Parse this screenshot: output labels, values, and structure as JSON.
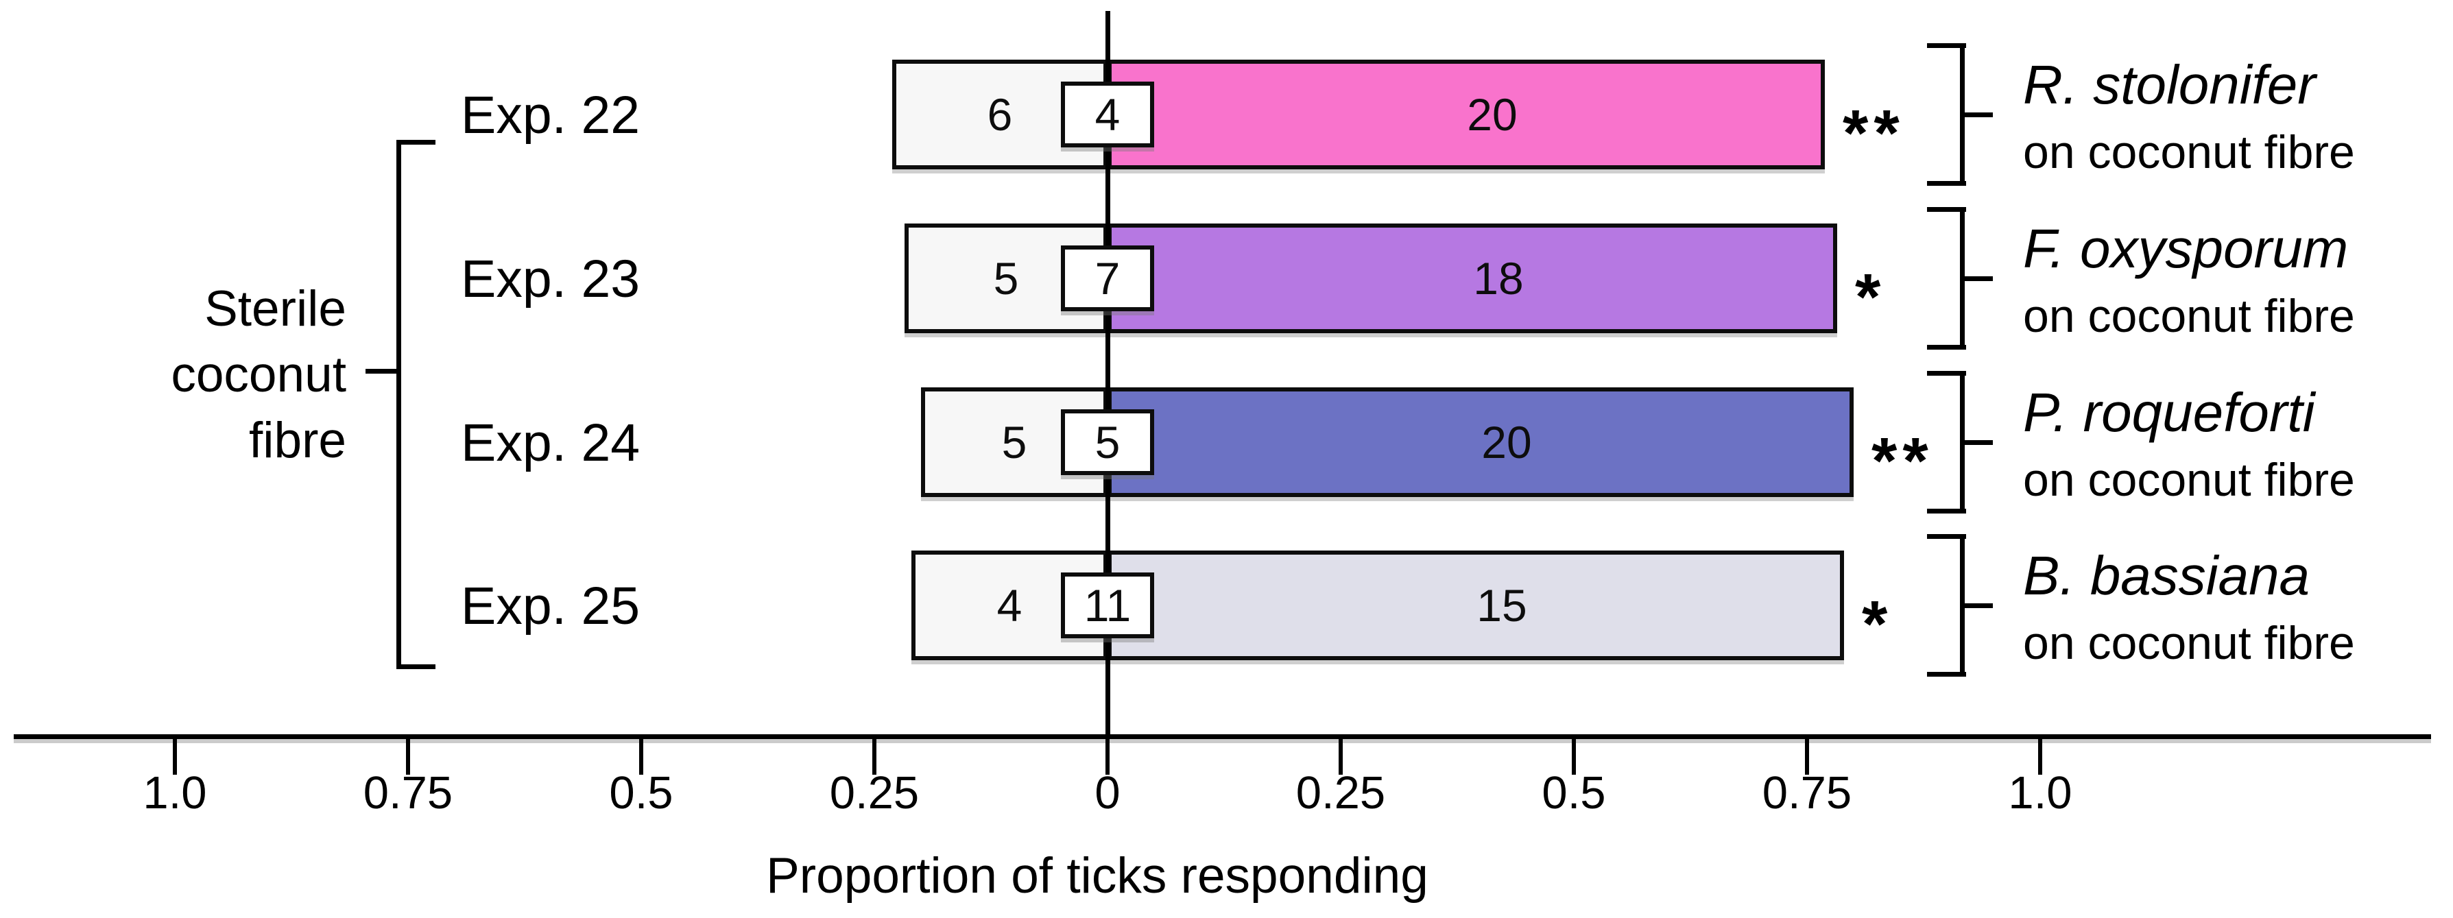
{
  "chart_data": {
    "type": "bar",
    "variant": "diverging-horizontal-choice-test",
    "title": "",
    "xlabel": "Proportion of ticks responding",
    "group_label_lines": [
      "Sterile",
      "coconut",
      "fibre"
    ],
    "axis": {
      "ticks": [
        {
          "label": "1.0",
          "value": -1.0
        },
        {
          "label": "0.75",
          "value": -0.75
        },
        {
          "label": "0.5",
          "value": -0.5
        },
        {
          "label": "0.25",
          "value": -0.25
        },
        {
          "label": "0",
          "value": 0
        },
        {
          "label": "0.25",
          "value": 0.25
        },
        {
          "label": "0.5",
          "value": 0.5
        },
        {
          "label": "0.75",
          "value": 0.75
        },
        {
          "label": "1.0",
          "value": 1.0
        }
      ],
      "xlim": [
        -1.0,
        1.0
      ],
      "grid": false
    },
    "left_bar_color": "#f7f7f7",
    "rows": [
      {
        "experiment": "Exp. 22",
        "left_count": 6,
        "no_choice_count": 4,
        "right_count": 20,
        "significance": "**",
        "species": "R. stolonifer",
        "species_sub": "on coconut fibre",
        "bar_color": "#f973cc"
      },
      {
        "experiment": "Exp. 23",
        "left_count": 5,
        "no_choice_count": 7,
        "right_count": 18,
        "significance": "*",
        "species": "F. oxysporum",
        "species_sub": "on coconut fibre",
        "bar_color": "#b678e2"
      },
      {
        "experiment": "Exp. 24",
        "left_count": 5,
        "no_choice_count": 5,
        "right_count": 20,
        "significance": "**",
        "species": "P. roqueforti",
        "species_sub": "on coconut fibre",
        "bar_color": "#6c72c4"
      },
      {
        "experiment": "Exp. 25",
        "left_count": 4,
        "no_choice_count": 11,
        "right_count": 15,
        "significance": "*",
        "species": "B. bassiana",
        "species_sub": "on coconut fibre",
        "bar_color": "#dfdfea"
      }
    ]
  }
}
